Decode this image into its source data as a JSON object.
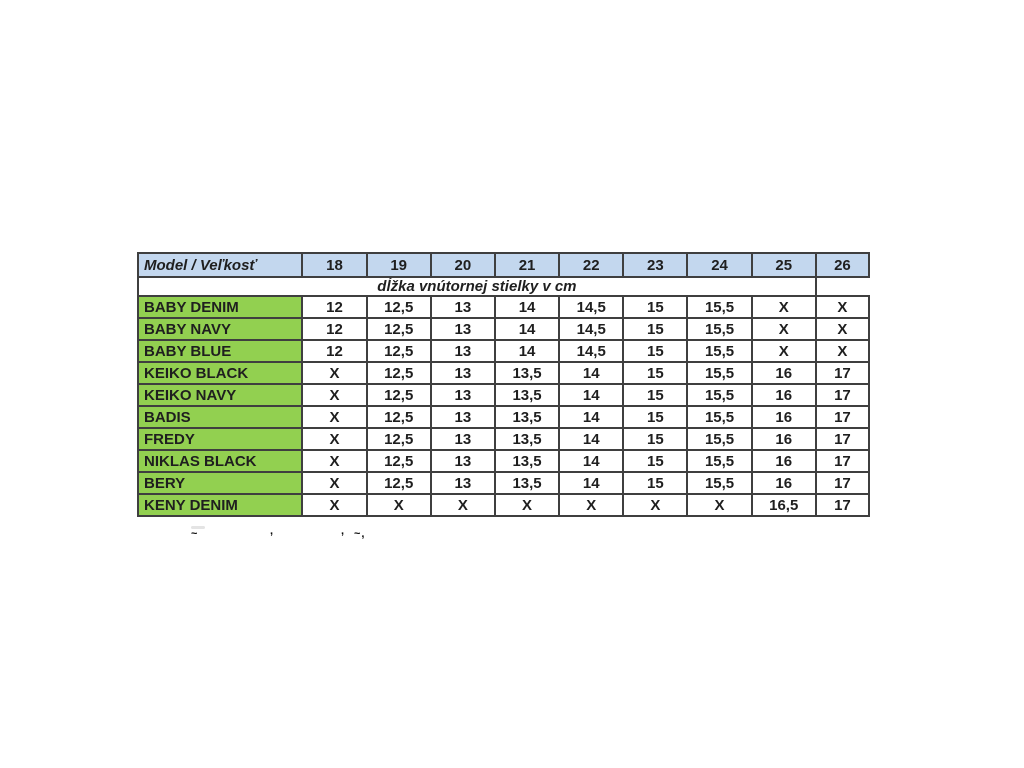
{
  "table": {
    "corner_label": "Model / Veľkosť",
    "sizes": [
      "18",
      "19",
      "20",
      "21",
      "22",
      "23",
      "24",
      "25",
      "26"
    ],
    "subheader": "dĺžka vnútornej stielky v cm",
    "rows": [
      {
        "model": "BABY DENIM",
        "values": [
          "12",
          "12,5",
          "13",
          "14",
          "14,5",
          "15",
          "15,5",
          "X",
          "X"
        ]
      },
      {
        "model": "BABY NAVY",
        "values": [
          "12",
          "12,5",
          "13",
          "14",
          "14,5",
          "15",
          "15,5",
          "X",
          "X"
        ]
      },
      {
        "model": "BABY BLUE",
        "values": [
          "12",
          "12,5",
          "13",
          "14",
          "14,5",
          "15",
          "15,5",
          "X",
          "X"
        ]
      },
      {
        "model": "KEIKO BLACK",
        "values": [
          "X",
          "12,5",
          "13",
          "13,5",
          "14",
          "15",
          "15,5",
          "16",
          "17"
        ]
      },
      {
        "model": "KEIKO NAVY",
        "values": [
          "X",
          "12,5",
          "13",
          "13,5",
          "14",
          "15",
          "15,5",
          "16",
          "17"
        ]
      },
      {
        "model": "BADIS",
        "values": [
          "X",
          "12,5",
          "13",
          "13,5",
          "14",
          "15",
          "15,5",
          "16",
          "17"
        ]
      },
      {
        "model": "FREDY",
        "values": [
          "X",
          "12,5",
          "13",
          "13,5",
          "14",
          "15",
          "15,5",
          "16",
          "17"
        ]
      },
      {
        "model": "NIKLAS BLACK",
        "values": [
          "X",
          "12,5",
          "13",
          "13,5",
          "14",
          "15",
          "15,5",
          "16",
          "17"
        ]
      },
      {
        "model": "BERY",
        "values": [
          "X",
          "12,5",
          "13",
          "13,5",
          "14",
          "15",
          "15,5",
          "16",
          "17"
        ]
      },
      {
        "model": "KENY DENIM",
        "values": [
          "X",
          "X",
          "X",
          "X",
          "X",
          "X",
          "X",
          "16,5",
          "17"
        ]
      }
    ],
    "colors": {
      "header_bg": "#C3D7EE",
      "model_bg": "#92D050",
      "border": "#3F3F3F",
      "text": "#1F1F1F",
      "cell_bg": "#FFFFFF"
    }
  },
  "artifacts": {
    "note": "cropped descender fragments of text below table",
    "marks": [
      "~",
      ",",
      ",",
      "~,"
    ]
  }
}
